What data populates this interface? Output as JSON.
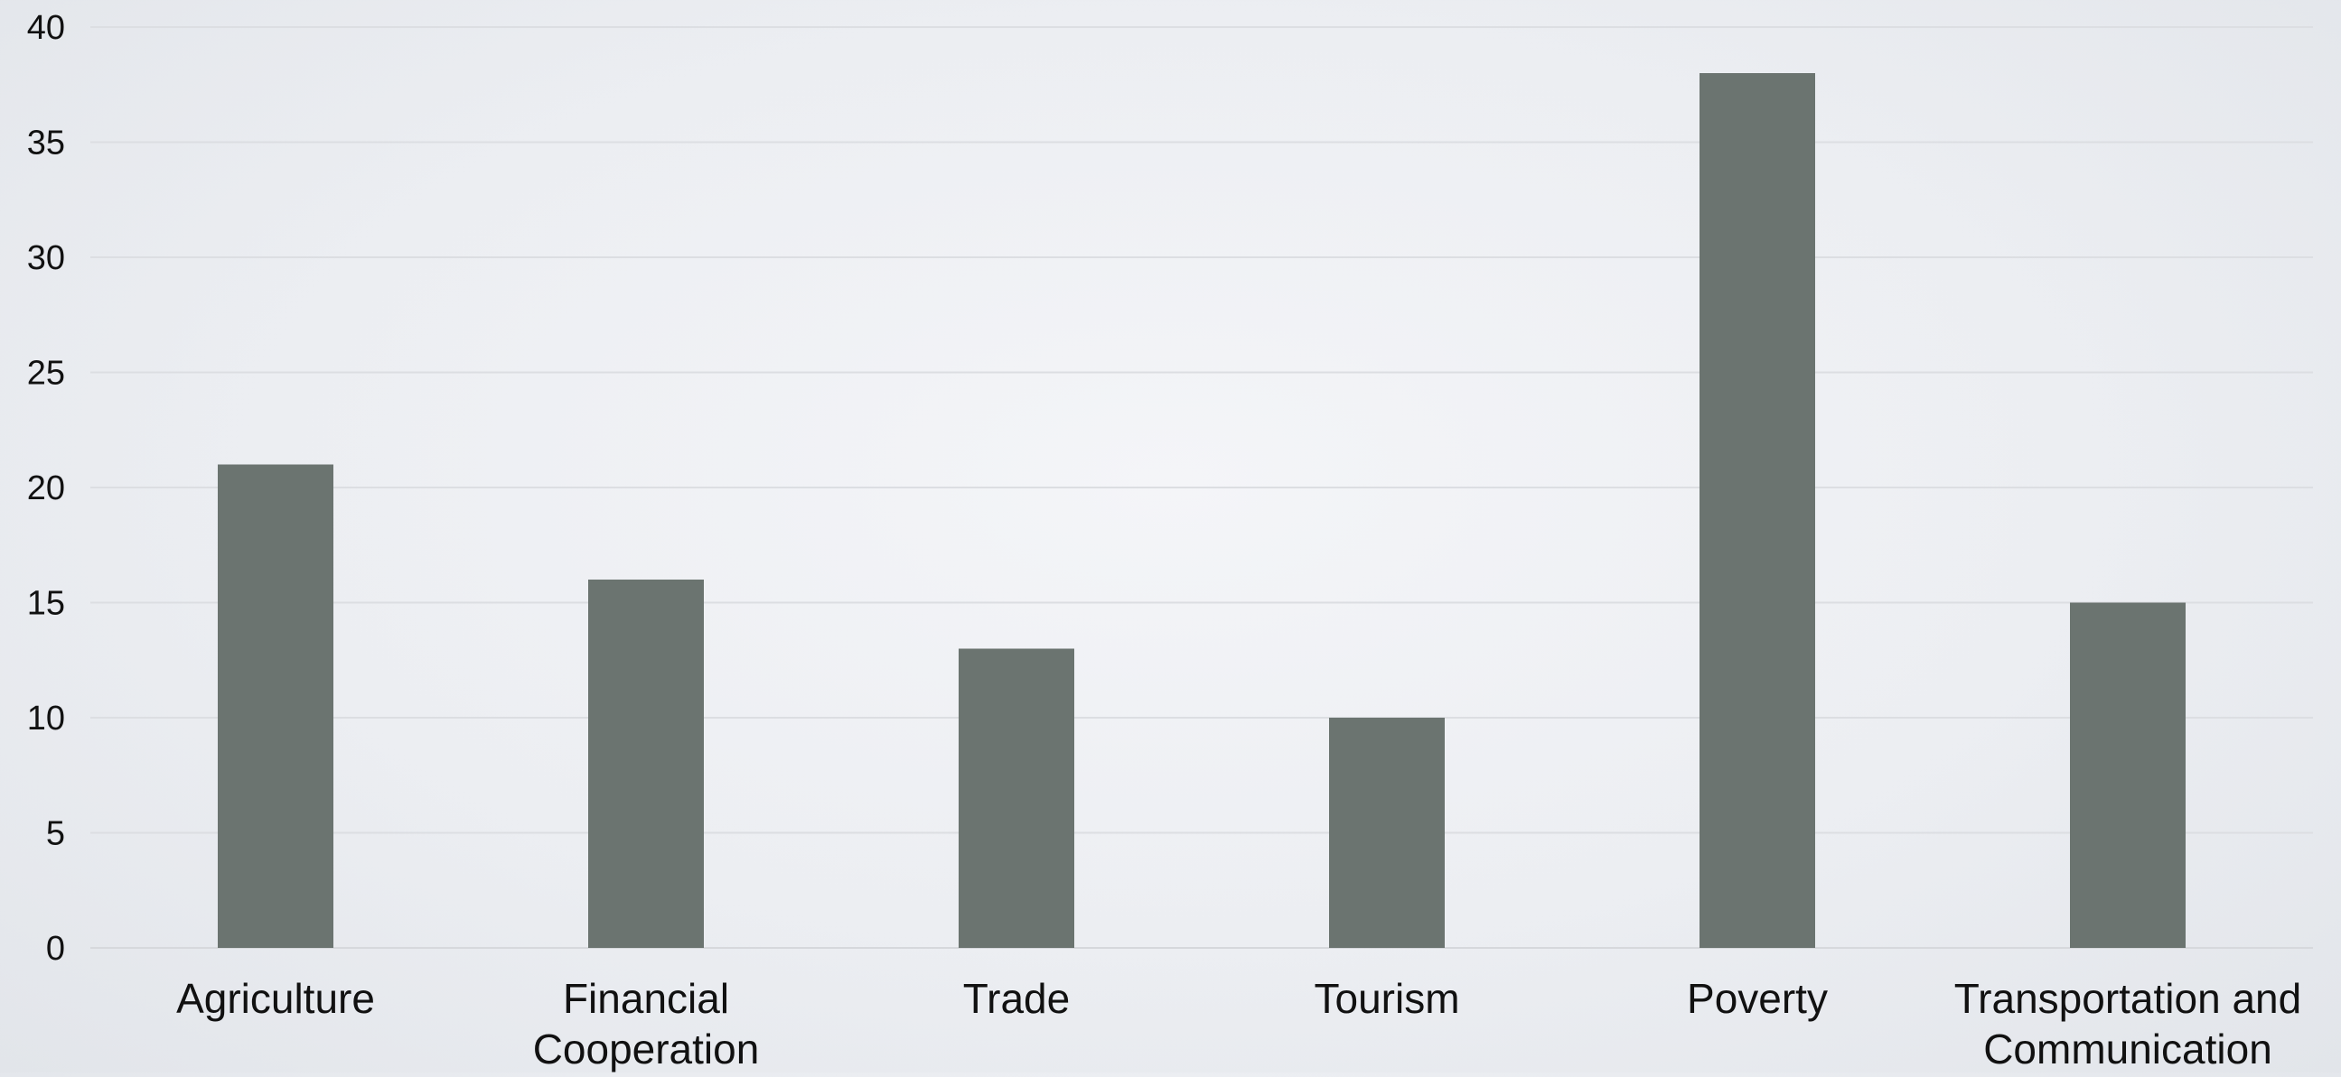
{
  "chart_data": {
    "type": "bar",
    "title": "",
    "xlabel": "",
    "ylabel": "",
    "categories": [
      "Agriculture",
      "Financial Cooperation",
      "Trade",
      "Tourism",
      "Poverty",
      "Transportation and Communication"
    ],
    "category_lines": [
      [
        "Agriculture"
      ],
      [
        "Financial",
        "Cooperation"
      ],
      [
        "Trade"
      ],
      [
        "Tourism"
      ],
      [
        "Poverty"
      ],
      [
        "Transportation and",
        "Communication"
      ]
    ],
    "values": [
      21,
      16,
      13,
      10,
      38,
      15
    ],
    "ylim": [
      0,
      40
    ],
    "yticks": [
      0,
      5,
      10,
      15,
      20,
      25,
      30,
      35,
      40
    ],
    "grid": true,
    "legend": "none",
    "bar_color": "#6b7470",
    "grid_color": "#dcdee2"
  }
}
